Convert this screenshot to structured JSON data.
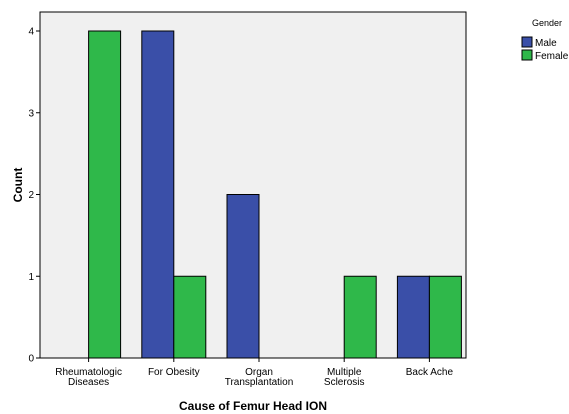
{
  "chart_data": {
    "type": "bar",
    "title": "",
    "xlabel": "Cause of Femur Head ION",
    "ylabel": "Count",
    "ylim": [
      0,
      4
    ],
    "yticks": [
      0,
      1,
      2,
      3,
      4
    ],
    "grid": false,
    "legend_title": "Gender",
    "legend_position": "top-right",
    "categories": [
      [
        "Rheumatologic",
        "Diseases"
      ],
      [
        "For Obesity"
      ],
      [
        "Organ",
        "Transplantation"
      ],
      [
        "Multiple",
        "Sclerosis"
      ],
      [
        "Back Ache"
      ]
    ],
    "series": [
      {
        "name": "Male",
        "color": "#3a4fa8",
        "values": [
          0,
          4,
          2,
          0,
          1
        ]
      },
      {
        "name": "Female",
        "color": "#2fb84a",
        "values": [
          4,
          1,
          0,
          1,
          1
        ]
      }
    ],
    "plot_background": "#f0f0f0"
  }
}
